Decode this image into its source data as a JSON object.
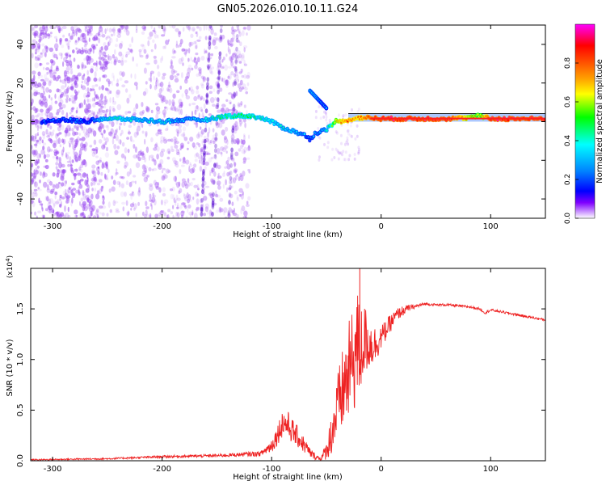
{
  "figure_title": "GN05.2026.010.10.11.G24",
  "colors": {
    "spectrogram_line": "#ff2020",
    "spectrogram_scatter": "#9a4af0",
    "snr_line": "#ee2222",
    "colorbar": [
      "#ff00ff",
      "#ff0000",
      "#ffa000",
      "#ffff00",
      "#00ff00",
      "#00ffff",
      "#0080ff",
      "#0000ff",
      "#8000ff",
      "#ffffff"
    ]
  },
  "chart_data": [
    {
      "type": "heatmap",
      "title": "GN05.2026.010.10.11.G24",
      "xlabel": "Height of straight line (km)",
      "ylabel": "Frequency (Hz)",
      "xlim": [
        -320,
        150
      ],
      "ylim": [
        -50,
        50
      ],
      "x_ticks": [
        -300,
        -200,
        -100,
        0,
        100
      ],
      "x_tick_labels": [
        "-300",
        "-200",
        "-100",
        "0",
        "100"
      ],
      "y_ticks": [
        -40,
        -20,
        0,
        20,
        40
      ],
      "y_tick_labels": [
        "-40",
        "-20",
        "0",
        "20",
        "40"
      ],
      "colorbar": {
        "label": "Normalized spectral amplitude",
        "range": [
          0,
          1
        ],
        "ticks": [
          0.0,
          0.2,
          0.4,
          0.6,
          0.8
        ],
        "tick_labels": [
          "0.0",
          "0.2",
          "0.4",
          "0.6",
          "0.8"
        ]
      },
      "ridge": {
        "x": [
          -310,
          -290,
          -270,
          -255,
          -240,
          -220,
          -200,
          -180,
          -160,
          -150,
          -140,
          -120,
          -110,
          -100,
          -90,
          -80,
          -70,
          -65,
          -60,
          -55,
          -50,
          -45,
          -40,
          -35,
          -30,
          -20,
          -10,
          0,
          20,
          40,
          60,
          80,
          90,
          100,
          120,
          150
        ],
        "y": [
          0,
          1,
          0,
          1.5,
          1.5,
          1,
          0,
          1,
          1,
          2,
          3,
          3,
          2,
          0,
          -3,
          -5,
          -7,
          -9,
          -6,
          -5,
          -4,
          -2,
          1,
          0,
          1,
          2,
          2,
          1.5,
          1.5,
          1.5,
          1.5,
          2,
          3,
          1.5,
          1.5,
          1.5
        ],
        "amplitude": [
          0.2,
          0.25,
          0.2,
          0.35,
          0.4,
          0.35,
          0.35,
          0.3,
          0.35,
          0.4,
          0.45,
          0.45,
          0.4,
          0.4,
          0.35,
          0.35,
          0.3,
          0.25,
          0.3,
          0.3,
          0.35,
          0.5,
          0.7,
          0.75,
          0.8,
          0.75,
          0.85,
          0.9,
          0.9,
          0.9,
          0.9,
          0.7,
          0.6,
          0.9,
          0.9,
          0.9
        ]
      },
      "branch": {
        "x": [
          -65,
          -60,
          -55,
          -50
        ],
        "y": [
          16,
          13,
          10,
          7
        ],
        "amplitude": [
          0.35,
          0.35,
          0.3,
          0.3
        ]
      }
    },
    {
      "type": "line",
      "xlabel": "Height of straight line (km)",
      "ylabel": "SNR (10 * v/v)",
      "y_multiplier_label": "(x10",
      "y_multiplier_exp": "4",
      "xlim": [
        -320,
        150
      ],
      "ylim": [
        0,
        19000
      ],
      "x_ticks": [
        -300,
        -200,
        -100,
        0,
        100
      ],
      "x_tick_labels": [
        "-300",
        "-200",
        "-100",
        "0",
        "100"
      ],
      "y_ticks": [
        0,
        5000,
        10000,
        15000
      ],
      "y_tick_labels": [
        "0.0",
        "0.5",
        "1.0",
        "1.5"
      ],
      "series": [
        {
          "name": "SNR",
          "x": [
            -320,
            -250,
            -200,
            -150,
            -110,
            -100,
            -95,
            -90,
            -85,
            -80,
            -75,
            -70,
            -65,
            -60,
            -55,
            -50,
            -45,
            -40,
            -35,
            -30,
            -25,
            -22,
            -20,
            -15,
            -10,
            -5,
            0,
            5,
            10,
            15,
            20,
            25,
            30,
            40,
            50,
            60,
            70,
            80,
            90,
            95,
            100,
            110,
            120,
            130,
            140,
            150
          ],
          "y": [
            100,
            200,
            400,
            500,
            700,
            1500,
            2500,
            3800,
            3500,
            2800,
            2200,
            1500,
            800,
            400,
            200,
            1000,
            2800,
            5000,
            7000,
            8500,
            10000,
            11500,
            10500,
            12000,
            11500,
            11500,
            12200,
            13000,
            13800,
            14500,
            14800,
            15100,
            15200,
            15500,
            15400,
            15400,
            15300,
            15200,
            15000,
            14600,
            14900,
            14700,
            14500,
            14300,
            14100,
            13900
          ],
          "noise_amplitude": [
            60,
            80,
            120,
            150,
            250,
            700,
            1000,
            1400,
            1400,
            1200,
            1000,
            800,
            500,
            300,
            200,
            900,
            2200,
            3500,
            4200,
            5000,
            5500,
            6000,
            5000,
            3500,
            2500,
            1800,
            1200,
            1000,
            800,
            600,
            500,
            300,
            200,
            150,
            120,
            120,
            120,
            120,
            120,
            120,
            120,
            120,
            120,
            120,
            120,
            120
          ]
        }
      ]
    }
  ]
}
